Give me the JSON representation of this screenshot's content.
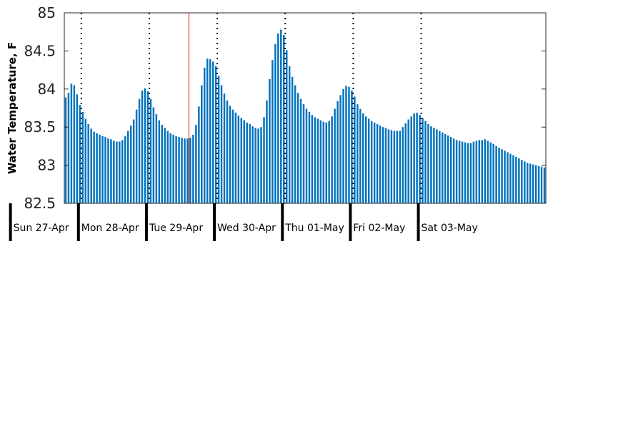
{
  "chart_data": {
    "type": "bar",
    "title": "",
    "xlabel": "",
    "ylabel": "Water Temperature, F",
    "ylim": [
      82.5,
      85
    ],
    "yticks": [
      "82.5",
      "83",
      "83.5",
      "84",
      "84.5",
      "85"
    ],
    "grid": false,
    "bar_color": "#0072bd",
    "now_line_color": "#ff0000",
    "now_marker_hour": 44,
    "day_labels": [
      "Sun 27-Apr",
      "Mon 28-Apr",
      "Tue 29-Apr",
      "Wed 30-Apr",
      "Thu 01-May",
      "Fri 02-May",
      "Sat 03-May"
    ],
    "day_start_hours": [
      -18,
      6,
      30,
      54,
      78,
      102,
      126
    ],
    "hours_per_bar": 1,
    "values": [
      83.89,
      83.95,
      84.07,
      84.05,
      83.93,
      83.79,
      83.7,
      83.61,
      83.54,
      83.48,
      83.44,
      83.42,
      83.4,
      83.38,
      83.37,
      83.35,
      83.34,
      83.32,
      83.31,
      83.31,
      83.33,
      83.38,
      83.45,
      83.52,
      83.6,
      83.73,
      83.87,
      83.98,
      84.01,
      83.97,
      83.87,
      83.76,
      83.67,
      83.59,
      83.53,
      83.49,
      83.45,
      83.42,
      83.4,
      83.38,
      83.37,
      83.36,
      83.35,
      83.35,
      83.36,
      83.4,
      83.53,
      83.77,
      84.05,
      84.28,
      84.4,
      84.39,
      84.36,
      84.3,
      84.17,
      84.05,
      83.94,
      83.85,
      83.78,
      83.73,
      83.69,
      83.65,
      83.62,
      83.59,
      83.56,
      83.54,
      83.51,
      83.49,
      83.48,
      83.5,
      83.63,
      83.85,
      84.13,
      84.38,
      84.59,
      84.73,
      84.78,
      84.71,
      84.51,
      84.3,
      84.16,
      84.05,
      83.95,
      83.87,
      83.8,
      83.74,
      83.7,
      83.66,
      83.63,
      83.61,
      83.59,
      83.57,
      83.56,
      83.58,
      83.64,
      83.74,
      83.84,
      83.92,
      84.0,
      84.04,
      84.03,
      83.98,
      83.9,
      83.8,
      83.74,
      83.68,
      83.64,
      83.61,
      83.58,
      83.56,
      83.54,
      83.52,
      83.5,
      83.49,
      83.47,
      83.46,
      83.45,
      83.45,
      83.45,
      83.5,
      83.55,
      83.6,
      83.64,
      83.68,
      83.69,
      83.66,
      83.62,
      83.58,
      83.54,
      83.51,
      83.49,
      83.47,
      83.45,
      83.43,
      83.41,
      83.39,
      83.37,
      83.35,
      83.33,
      83.32,
      83.31,
      83.3,
      83.29,
      83.29,
      83.31,
      83.32,
      83.33,
      83.33,
      83.34,
      83.32,
      83.3,
      83.28,
      83.25,
      83.23,
      83.21,
      83.19,
      83.17,
      83.15,
      83.13,
      83.11,
      83.09,
      83.07,
      83.05,
      83.03,
      83.02,
      83.01,
      83.0,
      82.99,
      82.98,
      82.97
    ]
  }
}
